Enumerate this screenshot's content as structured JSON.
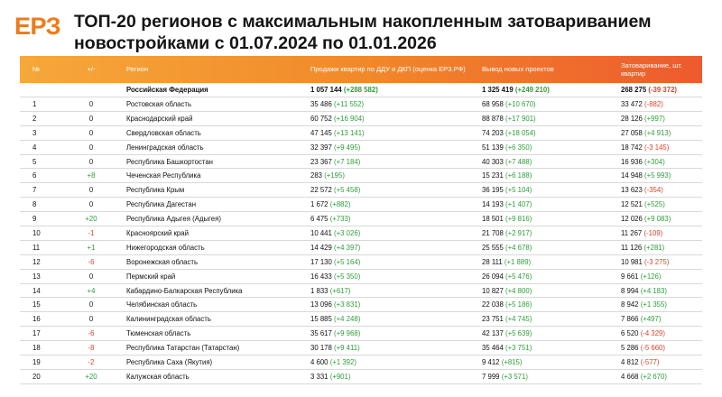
{
  "brand": {
    "logo": "ЕРЗ"
  },
  "title": "ТОП-20 регионов с максимальным накопленным затовариванием новостройками с 01.07.2024 по 01.01.2026",
  "headers": {
    "num": "№",
    "delta": "+/-",
    "region": "Регион",
    "sales": "Продажи квартир по ДДУ и ДКП (оценка ЕРЗ.РФ)",
    "projects": "Вывод новых проектов",
    "stock": "Затоваривание, шт. квартир"
  },
  "total": {
    "region": "Российская Федерация",
    "sales": "1 057 144",
    "sales_change": "(+288 582)",
    "projects": "1 325 419",
    "projects_change": "(+249 210)",
    "stock": "268 275",
    "stock_change": "(-39 372)"
  },
  "rows": [
    {
      "num": "1",
      "delta": "0",
      "region": "Ростовская область",
      "sales": "35 486",
      "sales_change": "(+11 552)",
      "projects": "68 958",
      "projects_change": "(+10 670)",
      "stock": "33 472",
      "stock_change": "(-882)"
    },
    {
      "num": "2",
      "delta": "0",
      "region": "Краснодарский край",
      "sales": "60 752",
      "sales_change": "(+16 904)",
      "projects": "88 878",
      "projects_change": "(+17 901)",
      "stock": "28 126",
      "stock_change": "(+997)"
    },
    {
      "num": "3",
      "delta": "0",
      "region": "Свердловская область",
      "sales": "47 145",
      "sales_change": "(+13 141)",
      "projects": "74 203",
      "projects_change": "(+18 054)",
      "stock": "27 058",
      "stock_change": "(+4 913)"
    },
    {
      "num": "4",
      "delta": "0",
      "region": "Ленинградская область",
      "sales": "32 397",
      "sales_change": "(+9 495)",
      "projects": "51 139",
      "projects_change": "(+6 350)",
      "stock": "18 742",
      "stock_change": "(-3 145)"
    },
    {
      "num": "5",
      "delta": "0",
      "region": "Республика Башкортостан",
      "sales": "23 367",
      "sales_change": "(+7 184)",
      "projects": "40 303",
      "projects_change": "(+7 488)",
      "stock": "16 936",
      "stock_change": "(+304)"
    },
    {
      "num": "6",
      "delta": "+8",
      "region": "Чеченская Республика",
      "sales": "283",
      "sales_change": "(+195)",
      "projects": "15 231",
      "projects_change": "(+6 188)",
      "stock": "14 948",
      "stock_change": "(+5 993)"
    },
    {
      "num": "7",
      "delta": "0",
      "region": "Республика Крым",
      "sales": "22 572",
      "sales_change": "(+5 458)",
      "projects": "36 195",
      "projects_change": "(+5 104)",
      "stock": "13 623",
      "stock_change": "(-354)"
    },
    {
      "num": "8",
      "delta": "0",
      "region": "Республика Дагестан",
      "sales": "1 672",
      "sales_change": "(+882)",
      "projects": "14 193",
      "projects_change": "(+1 407)",
      "stock": "12 521",
      "stock_change": "(+525)"
    },
    {
      "num": "9",
      "delta": "+20",
      "region": "Республика Адыгея (Адыгея)",
      "sales": "6 475",
      "sales_change": "(+733)",
      "projects": "18 501",
      "projects_change": "(+9 816)",
      "stock": "12 026",
      "stock_change": "(+9 083)"
    },
    {
      "num": "10",
      "delta": "-1",
      "region": "Красноярский край",
      "sales": "10 441",
      "sales_change": "(+3 026)",
      "projects": "21 708",
      "projects_change": "(+2 917)",
      "stock": "11 267",
      "stock_change": "(-109)"
    },
    {
      "num": "11",
      "delta": "+1",
      "region": "Нижегородская область",
      "sales": "14 429",
      "sales_change": "(+4 397)",
      "projects": "25 555",
      "projects_change": "(+4 678)",
      "stock": "11 126",
      "stock_change": "(+281)"
    },
    {
      "num": "12",
      "delta": "-6",
      "region": "Воронежская область",
      "sales": "17 130",
      "sales_change": "(+5 164)",
      "projects": "28 111",
      "projects_change": "(+1 889)",
      "stock": "10 981",
      "stock_change": "(-3 275)"
    },
    {
      "num": "13",
      "delta": "0",
      "region": "Пермский край",
      "sales": "16 433",
      "sales_change": "(+5 350)",
      "projects": "26 094",
      "projects_change": "(+5 476)",
      "stock": "9 661",
      "stock_change": "(+126)"
    },
    {
      "num": "14",
      "delta": "+4",
      "region": "Кабардино-Балкарская Республика",
      "sales": "1 833",
      "sales_change": "(+617)",
      "projects": "10 827",
      "projects_change": "(+4 800)",
      "stock": "8 994",
      "stock_change": "(+4 183)"
    },
    {
      "num": "15",
      "delta": "0",
      "region": "Челябинская область",
      "sales": "13 096",
      "sales_change": "(+3 831)",
      "projects": "22 038",
      "projects_change": "(+5 186)",
      "stock": "8 942",
      "stock_change": "(+1 355)"
    },
    {
      "num": "16",
      "delta": "0",
      "region": "Калининградская область",
      "sales": "15 885",
      "sales_change": "(+4 248)",
      "projects": "23 751",
      "projects_change": "(+4 745)",
      "stock": "7 866",
      "stock_change": "(+497)"
    },
    {
      "num": "17",
      "delta": "-6",
      "region": "Тюменская область",
      "sales": "35 617",
      "sales_change": "(+9 968)",
      "projects": "42 137",
      "projects_change": "(+5 639)",
      "stock": "6 520",
      "stock_change": "(-4 329)"
    },
    {
      "num": "18",
      "delta": "-8",
      "region": "Республика Татарстан (Татарстан)",
      "sales": "30 178",
      "sales_change": "(+9 411)",
      "projects": "35 464",
      "projects_change": "(+3 751)",
      "stock": "5 286",
      "stock_change": "(-5 660)"
    },
    {
      "num": "19",
      "delta": "-2",
      "region": "Республика Саха (Якутия)",
      "sales": "4 600",
      "sales_change": "(+1 392)",
      "projects": "9 412",
      "projects_change": "(+815)",
      "stock": "4 812",
      "stock_change": "(-577)"
    },
    {
      "num": "20",
      "delta": "+20",
      "region": "Калужская область",
      "sales": "3 331",
      "sales_change": "(+901)",
      "projects": "7 999",
      "projects_change": "(+3 571)",
      "stock": "4 668",
      "stock_change": "(+2 670)"
    }
  ],
  "colors": {
    "accent": "#f07a1a",
    "positive": "#2e9e3a",
    "negative": "#e0402a"
  }
}
